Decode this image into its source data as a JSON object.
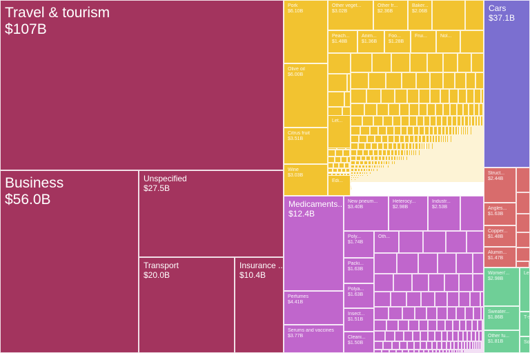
{
  "chart_data": {
    "type": "treemap",
    "colors": {
      "services": "#a3345e",
      "foodstuffs": "#f2c330",
      "chemicals": "#c066cc",
      "transportation": "#7b6fd0",
      "metals": "#d86c6c",
      "textiles": "#6fcf97"
    },
    "items": [
      {
        "name": "Travel & tourism",
        "value": "$107B",
        "group": "services"
      },
      {
        "name": "Business",
        "value": "$56.0B",
        "group": "services"
      },
      {
        "name": "Unspecified",
        "value": "$27.5B",
        "group": "services"
      },
      {
        "name": "Transport",
        "value": "$20.0B",
        "group": "services"
      },
      {
        "name": "Insurance ...",
        "value": "$10.4B",
        "group": "services"
      },
      {
        "name": "Pork",
        "value": "$6.10B",
        "group": "foodstuffs"
      },
      {
        "name": "Olive oil",
        "value": "$6.00B",
        "group": "foodstuffs"
      },
      {
        "name": "Citrus fruit",
        "value": "$3.51B",
        "group": "foodstuffs"
      },
      {
        "name": "Wine",
        "value": "$3.03B",
        "group": "foodstuffs"
      },
      {
        "name": "Other veget...",
        "value": "$3.02B",
        "group": "foodstuffs"
      },
      {
        "name": "Other fr...",
        "value": "$2.36B",
        "group": "foodstuffs"
      },
      {
        "name": "Baker...",
        "value": "$2.06B",
        "group": "foodstuffs"
      },
      {
        "name": "Peach...",
        "value": "$1.48B",
        "group": "foodstuffs"
      },
      {
        "name": "Anim...",
        "value": "$1.36B",
        "group": "foodstuffs"
      },
      {
        "name": "Foo...",
        "value": "$1.28B",
        "group": "foodstuffs"
      },
      {
        "name": "Frui...",
        "value": "",
        "group": "foodstuffs"
      },
      {
        "name": "Nol...",
        "value": "",
        "group": "foodstuffs"
      },
      {
        "name": "Let...",
        "value": "",
        "group": "foodstuffs"
      },
      {
        "name": "Edi...",
        "value": "",
        "group": "foodstuffs"
      },
      {
        "name": "Medicaments...",
        "value": "$12.4B",
        "group": "chemicals"
      },
      {
        "name": "Perfumes",
        "value": "$4.41B",
        "group": "chemicals"
      },
      {
        "name": "Serums and vaccines",
        "value": "$3.77B",
        "group": "chemicals"
      },
      {
        "name": "New pneum...",
        "value": "$3.40B",
        "group": "chemicals"
      },
      {
        "name": "Heterocy...",
        "value": "$2.98B",
        "group": "chemicals"
      },
      {
        "name": "Industr...",
        "value": "$2.53B",
        "group": "chemicals"
      },
      {
        "name": "Poly...",
        "value": "$1.74B",
        "group": "chemicals"
      },
      {
        "name": "Oth...",
        "value": "",
        "group": "chemicals"
      },
      {
        "name": "Packi...",
        "value": "$1.63B",
        "group": "chemicals"
      },
      {
        "name": "Polya...",
        "value": "$1.63B",
        "group": "chemicals"
      },
      {
        "name": "Insect...",
        "value": "$1.51B",
        "group": "chemicals"
      },
      {
        "name": "Cleani...",
        "value": "$1.50B",
        "group": "chemicals"
      },
      {
        "name": "Cars",
        "value": "$37.1B",
        "group": "transportation"
      },
      {
        "name": "Struct...",
        "value": "$2.44B",
        "group": "metals"
      },
      {
        "name": "Angles...",
        "value": "$1.63B",
        "group": "metals"
      },
      {
        "name": "Copper...",
        "value": "$1.48B",
        "group": "metals"
      },
      {
        "name": "Alumin...",
        "value": "$1.47B",
        "group": "metals"
      },
      {
        "name": "Women'...",
        "value": "$2.98B",
        "group": "textiles"
      },
      {
        "name": "Sweater...",
        "value": "$1.86B",
        "group": "textiles"
      },
      {
        "name": "Other fu...",
        "value": "$1.81B",
        "group": "textiles"
      },
      {
        "name": "Lea...",
        "value": "",
        "group": "textiles"
      },
      {
        "name": "T-sh...",
        "value": "",
        "group": "textiles"
      },
      {
        "name": "So...",
        "value": "",
        "group": "textiles"
      }
    ]
  }
}
